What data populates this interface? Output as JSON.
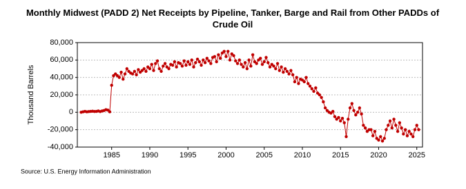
{
  "chart_data": {
    "type": "line",
    "title": "Monthly Midwest (PADD 2) Net Receipts by Pipeline, Tanker, Barge and Rail from Other PADDs of Crude Oil",
    "y_label": "Thousand Barrels",
    "source": "Source: U.S. Energy Information Administration",
    "xlim": [
      1980.5,
      2025.75
    ],
    "xticks": [
      1985,
      1990,
      1995,
      2000,
      2005,
      2010,
      2015,
      2020,
      2025
    ],
    "ylim": [
      -40000,
      80000
    ],
    "yticks": [
      {
        "value": -40000,
        "label": "-40,000"
      },
      {
        "value": -20000,
        "label": "-20,000"
      },
      0,
      {
        "value": 20000,
        "label": "20,000"
      },
      {
        "value": 40000,
        "label": "40,000"
      },
      {
        "value": 60000,
        "label": "60,000"
      },
      {
        "value": 80000,
        "label": "80,000"
      }
    ],
    "grid": true,
    "x": [
      1981,
      1981.25,
      1981.5,
      1981.75,
      1982,
      1982.25,
      1982.5,
      1982.75,
      1983,
      1983.25,
      1983.5,
      1983.75,
      1984,
      1984.25,
      1984.5,
      1984.75,
      1985,
      1985.25,
      1985.5,
      1985.75,
      1986,
      1986.25,
      1986.5,
      1986.75,
      1987,
      1987.25,
      1987.5,
      1987.75,
      1988,
      1988.25,
      1988.5,
      1988.75,
      1989,
      1989.25,
      1989.5,
      1989.75,
      1990,
      1990.25,
      1990.5,
      1990.75,
      1991,
      1991.25,
      1991.5,
      1991.75,
      1992,
      1992.25,
      1992.5,
      1992.75,
      1993,
      1993.25,
      1993.5,
      1993.75,
      1994,
      1994.25,
      1994.5,
      1994.75,
      1995,
      1995.25,
      1995.5,
      1995.75,
      1996,
      1996.25,
      1996.5,
      1996.75,
      1997,
      1997.25,
      1997.5,
      1997.75,
      1998,
      1998.25,
      1998.5,
      1998.75,
      1999,
      1999.25,
      1999.5,
      1999.75,
      2000,
      2000.25,
      2000.5,
      2000.75,
      2001,
      2001.25,
      2001.5,
      2001.75,
      2002,
      2002.25,
      2002.5,
      2002.75,
      2003,
      2003.25,
      2003.5,
      2003.75,
      2004,
      2004.25,
      2004.5,
      2004.75,
      2005,
      2005.25,
      2005.5,
      2005.75,
      2006,
      2006.25,
      2006.5,
      2006.75,
      2007,
      2007.25,
      2007.5,
      2007.75,
      2008,
      2008.25,
      2008.5,
      2008.75,
      2009,
      2009.25,
      2009.5,
      2009.75,
      2010,
      2010.25,
      2010.5,
      2010.75,
      2011,
      2011.25,
      2011.5,
      2011.75,
      2012,
      2012.25,
      2012.5,
      2012.75,
      2013,
      2013.25,
      2013.5,
      2013.75,
      2014,
      2014.25,
      2014.5,
      2014.75,
      2015,
      2015.25,
      2015.5,
      2015.75,
      2016,
      2016.25,
      2016.5,
      2016.75,
      2017,
      2017.25,
      2017.5,
      2017.75,
      2018,
      2018.25,
      2018.5,
      2018.75,
      2019,
      2019.25,
      2019.5,
      2019.75,
      2020,
      2020.25,
      2020.5,
      2020.75,
      2021,
      2021.25,
      2021.5,
      2021.75,
      2022,
      2022.25,
      2022.5,
      2022.75,
      2023,
      2023.25,
      2023.5,
      2023.75,
      2024,
      2024.25,
      2024.5,
      2024.75,
      2025,
      2025.25
    ],
    "series": [
      {
        "color": "#c00000",
        "values": [
          0,
          500,
          1000,
          500,
          800,
          1000,
          1200,
          900,
          1000,
          1500,
          800,
          1500,
          2000,
          3000,
          2500,
          500,
          31000,
          42000,
          44000,
          42000,
          40000,
          46000,
          38000,
          44000,
          50000,
          47000,
          45000,
          44000,
          47000,
          43000,
          49000,
          46000,
          48000,
          50000,
          47000,
          52000,
          50000,
          55000,
          48000,
          56000,
          59000,
          50000,
          47000,
          53000,
          56000,
          52000,
          50000,
          55000,
          54000,
          58000,
          52000,
          57000,
          56000,
          53000,
          59000,
          54000,
          58000,
          55000,
          60000,
          52000,
          57000,
          61000,
          58000,
          54000,
          60000,
          57000,
          62000,
          59000,
          56000,
          63000,
          64000,
          58000,
          66000,
          62000,
          68000,
          70000,
          64000,
          70000,
          60000,
          67000,
          65000,
          59000,
          56000,
          60000,
          55000,
          52000,
          57000,
          50000,
          60000,
          53000,
          66000,
          58000,
          56000,
          60000,
          62000,
          55000,
          58000,
          63000,
          57000,
          52000,
          55000,
          53000,
          50000,
          56000,
          48000,
          52000,
          46000,
          50000,
          47000,
          44000,
          48000,
          43000,
          35000,
          40000,
          33000,
          38000,
          37000,
          35000,
          40000,
          33000,
          30000,
          27000,
          24000,
          28000,
          22000,
          20000,
          17000,
          12000,
          5000,
          2000,
          0,
          -1000,
          1000,
          -5000,
          -8000,
          -6000,
          -10000,
          -7000,
          -12000,
          -28000,
          -8000,
          5000,
          10000,
          2000,
          -3000,
          0,
          5000,
          -2000,
          -15000,
          -18000,
          -22000,
          -20000,
          -20000,
          -27000,
          -22000,
          -30000,
          -32000,
          -28000,
          -33000,
          -30000,
          -20000,
          -15000,
          -10000,
          -18000,
          -8000,
          -15000,
          -22000,
          -12000,
          -18000,
          -25000,
          -20000,
          -27000,
          -22000,
          -25000,
          -28000,
          -20000,
          -15000,
          -20000
        ]
      }
    ]
  }
}
